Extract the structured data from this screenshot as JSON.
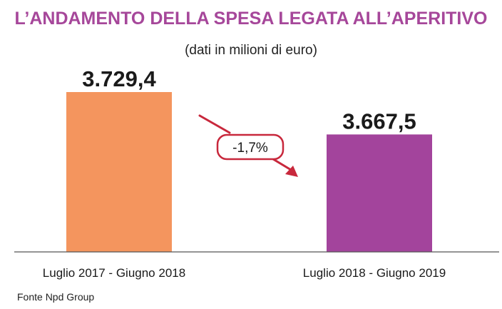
{
  "chart_data": {
    "type": "bar",
    "title": "L’ANDAMENTO DELLA SPESA LEGATA ALL’APERITIVO",
    "subtitle": "(dati in milioni di euro)",
    "categories": [
      "Luglio 2017 - Giugno 2018",
      "Luglio 2018 - Giugno 2019"
    ],
    "values": [
      3729.4,
      3667.5
    ],
    "value_labels": [
      "3.729,4",
      "3.667,5"
    ],
    "colors": [
      "#f4955e",
      "#a3449c"
    ],
    "change_label": "-1,7%",
    "annotation_color": "#c8283c",
    "source": "Fonte Npd Group",
    "xlabel": "",
    "ylabel": "",
    "grid": false
  }
}
